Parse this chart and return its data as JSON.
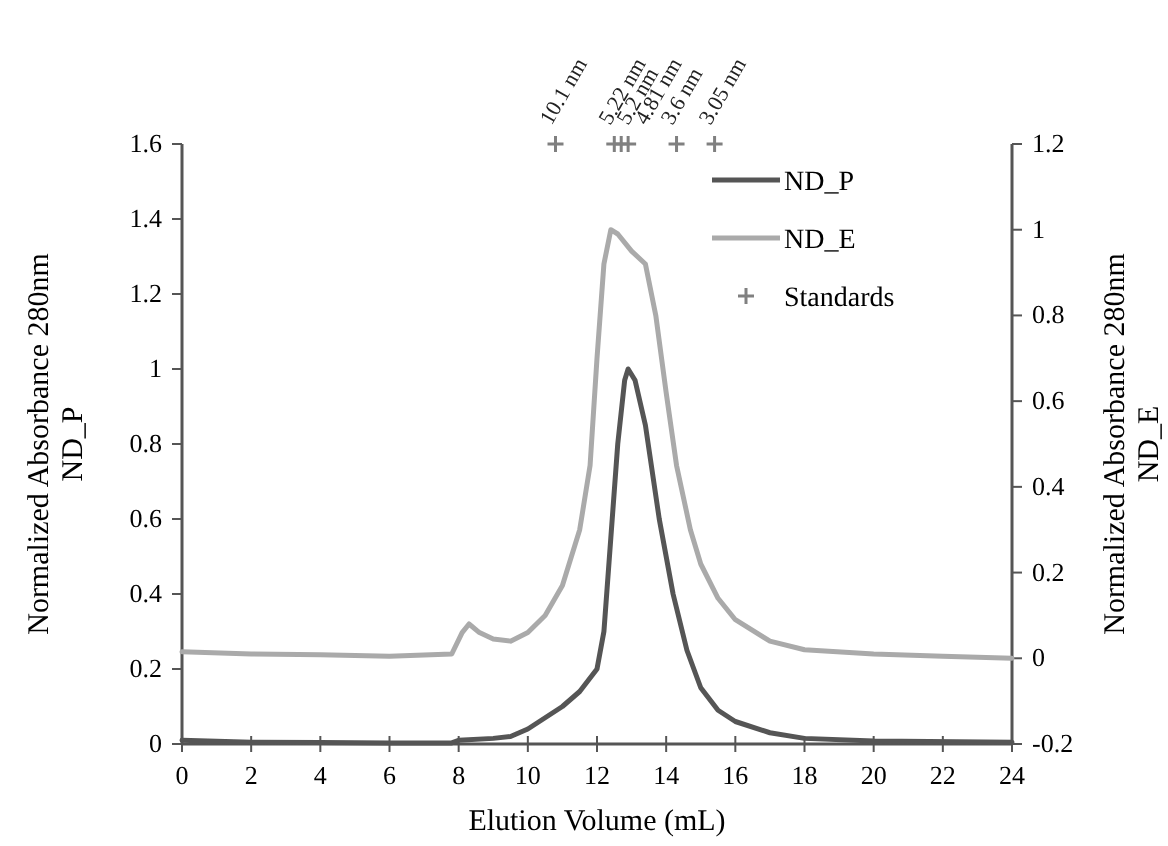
{
  "chart_data": {
    "type": "line",
    "xlabel": "Elution Volume (mL)",
    "ylabel": "Normalized Absorbance 280nm\nND_P",
    "y2label": "Normalized Absorbance 280nm\nND_E",
    "xlim": [
      0,
      24
    ],
    "xticks": [
      0,
      2,
      4,
      6,
      8,
      10,
      12,
      14,
      16,
      18,
      20,
      22,
      24
    ],
    "ylim": [
      0,
      1.6
    ],
    "yticks": [
      0,
      0.2,
      0.4,
      0.6,
      0.8,
      1,
      1.2,
      1.4,
      1.6
    ],
    "y2lim": [
      -0.2,
      1.2
    ],
    "y2ticks": [
      -0.2,
      0,
      0.2,
      0.4,
      0.6,
      0.8,
      1,
      1.2
    ],
    "grid": false,
    "legend": "top right",
    "line_style": "solid",
    "series": [
      {
        "name": "ND_P",
        "color": "#555555",
        "x": [
          0,
          2,
          4,
          6,
          7.8,
          8,
          9,
          9.5,
          10,
          10.5,
          11,
          11.5,
          12,
          12.2,
          12.4,
          12.6,
          12.8,
          12.9,
          13.1,
          13.4,
          13.8,
          14.2,
          14.6,
          15,
          15.5,
          16,
          17,
          18,
          20,
          24
        ],
        "values": [
          0.01,
          0.005,
          0.004,
          0.003,
          0.003,
          0.01,
          0.015,
          0.02,
          0.04,
          0.07,
          0.1,
          0.14,
          0.2,
          0.3,
          0.55,
          0.8,
          0.97,
          1,
          0.97,
          0.85,
          0.6,
          0.4,
          0.25,
          0.15,
          0.09,
          0.06,
          0.03,
          0.015,
          0.008,
          0.005
        ]
      },
      {
        "name": "ND_E",
        "color": "#aaaaaa",
        "axis": "y2",
        "x": [
          0,
          2,
          4,
          6,
          7.8,
          8.1,
          8.3,
          8.6,
          9,
          9.5,
          10,
          10.5,
          11,
          11.5,
          11.8,
          12,
          12.2,
          12.4,
          12.6,
          13,
          13.4,
          13.7,
          14,
          14.3,
          14.7,
          15,
          15.5,
          16,
          17,
          18,
          20,
          22,
          24
        ],
        "values": [
          0.015,
          0.01,
          0.008,
          0.005,
          0.01,
          0.06,
          0.08,
          0.06,
          0.045,
          0.04,
          0.06,
          0.1,
          0.17,
          0.3,
          0.45,
          0.7,
          0.92,
          1,
          0.99,
          0.95,
          0.92,
          0.8,
          0.62,
          0.45,
          0.3,
          0.22,
          0.14,
          0.09,
          0.04,
          0.02,
          0.01,
          0.005,
          0
        ]
      },
      {
        "name": "Standards",
        "color": "#808080",
        "type": "scatter",
        "marker": "cross",
        "x": [
          10.8,
          12.5,
          12.7,
          12.9,
          14.3,
          15.4
        ],
        "values": [
          1.6,
          1.6,
          1.6,
          1.6,
          1.6,
          1.6
        ]
      }
    ],
    "annotations": [
      {
        "text": "10.1 nm",
        "x": 10.8,
        "y": 1.6
      },
      {
        "text": "5.22 nm",
        "x": 12.5,
        "y": 1.6
      },
      {
        "text": "5.2 nm",
        "x": 12.7,
        "y": 1.6
      },
      {
        "text": "4.81 nm",
        "x": 12.9,
        "y": 1.6
      },
      {
        "text": "3.6 nm",
        "x": 14.3,
        "y": 1.6
      },
      {
        "text": "3.05 nm",
        "x": 15.4,
        "y": 1.6
      }
    ]
  }
}
